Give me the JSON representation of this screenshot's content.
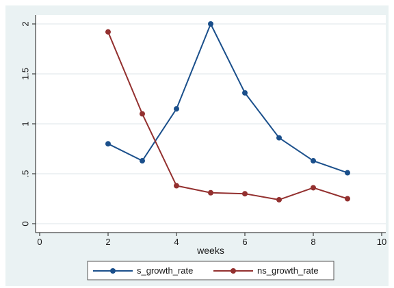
{
  "chart_data": {
    "type": "line",
    "title": "",
    "xlabel": "weeks",
    "ylabel": "",
    "xlim": [
      0,
      10
    ],
    "ylim": [
      0,
      2
    ],
    "xticks": [
      0,
      2,
      4,
      6,
      8,
      10
    ],
    "xtick_labels": [
      "0",
      "2",
      "4",
      "6",
      "8",
      "10"
    ],
    "yticks": [
      0,
      0.5,
      1,
      1.5,
      2
    ],
    "ytick_labels": [
      "0",
      ".5",
      "1",
      "1.5",
      "2"
    ],
    "grid": "horizontal",
    "legend_position": "bottom",
    "series": [
      {
        "name": "s_growth_rate",
        "color": "#1a4f8b",
        "x": [
          2,
          3,
          4,
          5,
          6,
          7,
          8,
          9
        ],
        "y": [
          0.8,
          0.63,
          1.15,
          2.0,
          1.31,
          0.86,
          0.63,
          0.51
        ]
      },
      {
        "name": "ns_growth_rate",
        "color": "#93302f",
        "x": [
          2,
          3,
          4,
          5,
          6,
          7,
          8,
          9
        ],
        "y": [
          1.92,
          1.1,
          0.38,
          0.31,
          0.3,
          0.24,
          0.36,
          0.25
        ]
      }
    ]
  },
  "colors": {
    "outer_background": "#eaf2f3",
    "plot_background": "#ffffff",
    "gridline": "#dde6e8"
  }
}
